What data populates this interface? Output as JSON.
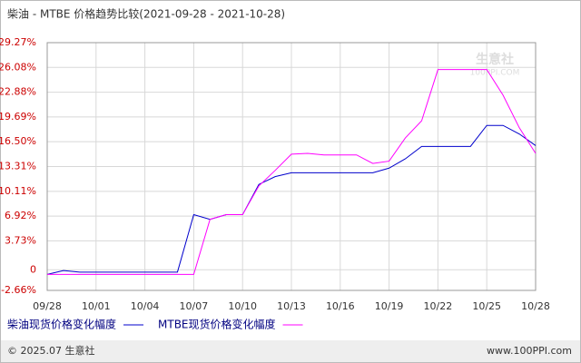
{
  "chart_data": {
    "type": "line",
    "title": "柴油 - MTBE 价格趋势比较(2021-09-28 - 2021-10-28)",
    "categories": [
      "09/28",
      null,
      null,
      "10/01",
      null,
      null,
      "10/04",
      null,
      null,
      "10/07",
      null,
      null,
      "10/10",
      null,
      null,
      "10/13",
      null,
      null,
      "10/16",
      null,
      null,
      "10/19",
      null,
      null,
      "10/22",
      null,
      null,
      "10/25",
      null,
      null,
      "10/28"
    ],
    "series": [
      {
        "name": "柴油现货价格变化幅度",
        "color": "#0000cc",
        "values": [
          -0.6,
          -0.1,
          -0.3,
          -0.3,
          -0.3,
          -0.3,
          -0.3,
          -0.3,
          -0.3,
          7.1,
          6.5,
          7.1,
          7.1,
          11.0,
          12.0,
          12.5,
          12.5,
          12.5,
          12.5,
          12.5,
          12.5,
          13.1,
          14.3,
          15.9,
          15.9,
          15.9,
          15.9,
          18.6,
          18.6,
          17.5,
          16.0
        ]
      },
      {
        "name": "MTBE现货价格变化幅度",
        "color": "#ff00ff",
        "values": [
          -0.6,
          -0.6,
          -0.6,
          -0.6,
          -0.6,
          -0.6,
          -0.6,
          -0.6,
          -0.6,
          -0.6,
          6.5,
          7.1,
          7.1,
          10.8,
          12.8,
          14.9,
          15.0,
          14.8,
          14.8,
          14.8,
          13.7,
          14.0,
          17.0,
          19.2,
          25.8,
          25.8,
          25.8,
          25.8,
          22.5,
          18.3,
          15.0
        ]
      }
    ],
    "ylim": [
      -2.66,
      29.27
    ],
    "yticks": [
      {
        "value": -2.66,
        "label": "-2.66%"
      },
      0,
      {
        "value": 3.73,
        "label": "3.73%"
      },
      {
        "value": 6.92,
        "label": "6.92%"
      },
      {
        "value": 10.11,
        "label": "10.11%"
      },
      {
        "value": 13.31,
        "label": "13.31%"
      },
      {
        "value": 16.5,
        "label": "16.50%"
      },
      {
        "value": 19.69,
        "label": "19.69%"
      },
      {
        "value": 22.88,
        "label": "22.88%"
      },
      {
        "value": 26.08,
        "label": "26.08%"
      },
      {
        "value": 29.27,
        "label": "29.27%"
      }
    ],
    "grid": true,
    "watermark": [
      "生意社",
      "100PPI.COM"
    ],
    "footer": [
      "© 2025.07 生意社",
      "www.100PPI.com"
    ]
  }
}
